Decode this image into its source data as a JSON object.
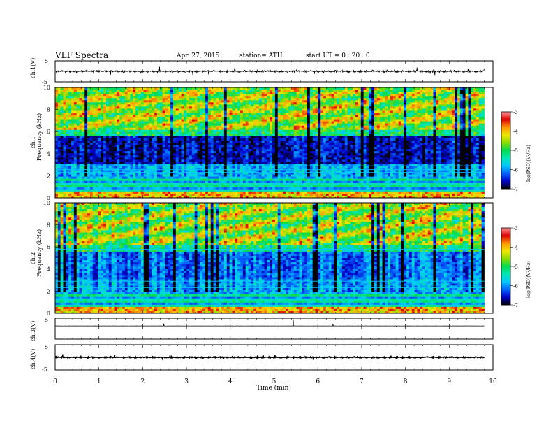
{
  "header": {
    "title": "VLF Spectra",
    "date": "Apr. 27, 2015",
    "station": "station= ATH",
    "start": "start  UT =   0 : 20 : 0"
  },
  "chart_data": {
    "type": "heatmap",
    "time_axis": {
      "label": "Time (min)",
      "range": [
        0,
        10
      ],
      "ticks": [
        "0",
        "1",
        "2",
        "3",
        "4",
        "5",
        "6",
        "7",
        "8",
        "9",
        "10"
      ],
      "data_end_min": 9.8
    },
    "panels": [
      {
        "id": "ch1-wave",
        "type": "line",
        "ylabel": "ch.1(V)",
        "ylim": [
          -5,
          5
        ],
        "ticks": [
          "5",
          "-5"
        ],
        "baseline": 0,
        "amplitude": 0.6
      },
      {
        "id": "ch1-spec",
        "type": "heatmap",
        "ylabel_channel": "ch.1",
        "ylabel": "Frequency (kHz)",
        "ylim": [
          0,
          10
        ],
        "ticks": [
          "0",
          "2",
          "4",
          "6",
          "8",
          "10"
        ],
        "colorbar": {
          "label": "log(PSD)(V²/Hz)",
          "range": [
            -7,
            -3
          ],
          "ticks": [
            "-3",
            "-4",
            "-5",
            "-6",
            "-7"
          ]
        }
      },
      {
        "id": "ch2-spec",
        "type": "heatmap",
        "ylabel_channel": "ch.2",
        "ylabel": "Frequency (kHz)",
        "ylim": [
          0,
          10
        ],
        "ticks": [
          "0",
          "2",
          "4",
          "6",
          "8",
          "10"
        ],
        "colorbar": {
          "label": "log(PSD)(V²/Hz)",
          "range": [
            -7,
            -3
          ],
          "ticks": [
            "-3",
            "-4",
            "-5",
            "-6",
            "-7"
          ]
        }
      },
      {
        "id": "ch3-wave",
        "type": "line",
        "ylabel": "ch.3(V)",
        "ylim": [
          -5,
          5
        ],
        "ticks": [
          "5"
        ],
        "baseline": 5,
        "amplitude": 0.05
      },
      {
        "id": "ch4-wave",
        "type": "line",
        "ylabel": "ch.4(V)",
        "ylim": [
          -5,
          5
        ],
        "ticks": [
          "5",
          "-5"
        ],
        "baseline": 0,
        "amplitude": 0.3
      }
    ],
    "colormap": [
      "#000000",
      "#0000c8",
      "#0064ff",
      "#00c8ff",
      "#00e6b4",
      "#00dc50",
      "#8cdc00",
      "#f0e600",
      "#ff9600",
      "#dc0000",
      "#ff9696"
    ]
  }
}
